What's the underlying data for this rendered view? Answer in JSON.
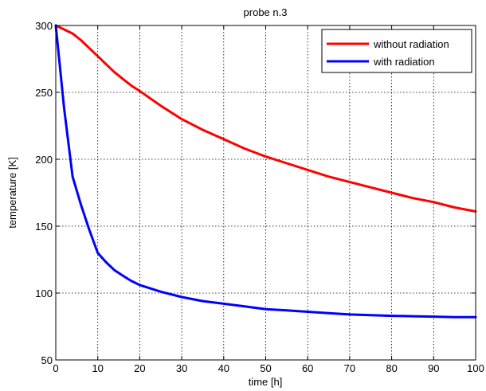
{
  "chart_data": {
    "type": "line",
    "title": "probe n.3",
    "xlabel": "time [h]",
    "ylabel": "temperature [K]",
    "xlim": [
      0,
      100
    ],
    "ylim": [
      50,
      300
    ],
    "xticks": [
      "0",
      "10",
      "20",
      "30",
      "40",
      "50",
      "60",
      "70",
      "80",
      "90",
      "100"
    ],
    "yticks": [
      "50",
      "100",
      "150",
      "200",
      "250",
      "300"
    ],
    "grid": true,
    "legend_position": "top-right",
    "series": [
      {
        "name": "without radiation",
        "color": "#ff0000",
        "x": [
          0,
          2,
          4,
          6,
          8,
          10,
          12,
          14,
          16,
          18,
          20,
          25,
          30,
          35,
          40,
          45,
          50,
          55,
          60,
          65,
          70,
          75,
          80,
          85,
          90,
          95,
          100
        ],
        "y": [
          300,
          297,
          294,
          289,
          283,
          277,
          271,
          265,
          260,
          255,
          251,
          240,
          230,
          222,
          215,
          208,
          202,
          197,
          192,
          187,
          183,
          179,
          175,
          171,
          168,
          164,
          161
        ]
      },
      {
        "name": "with radiation",
        "color": "#0000ff",
        "x": [
          0,
          2,
          4,
          6,
          8,
          10,
          12,
          14,
          16,
          18,
          20,
          25,
          30,
          35,
          40,
          45,
          50,
          55,
          60,
          65,
          70,
          75,
          80,
          85,
          90,
          95,
          100
        ],
        "y": [
          300,
          238,
          187,
          166,
          147,
          130,
          123,
          117,
          113,
          109,
          106,
          101,
          97,
          94,
          92,
          90,
          88,
          87,
          86,
          85,
          84,
          83.5,
          83,
          82.7,
          82.4,
          82,
          82
        ]
      }
    ]
  }
}
